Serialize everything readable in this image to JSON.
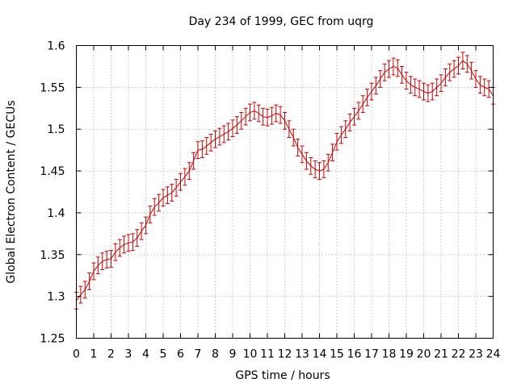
{
  "chart_data": {
    "type": "line",
    "title": "Day 234 of 1999, GEC from uqrg",
    "xlabel": "GPS time / hours",
    "ylabel": "Global Electron Content / GECUs",
    "xlim": [
      0,
      24
    ],
    "ylim": [
      1.25,
      1.6
    ],
    "x_ticks": [
      "0",
      "1",
      "2",
      "3",
      "4",
      "5",
      "6",
      "7",
      "8",
      "9",
      "10",
      "11",
      "12",
      "13",
      "14",
      "15",
      "16",
      "17",
      "18",
      "19",
      "20",
      "21",
      "22",
      "23",
      "24"
    ],
    "y_ticks": [
      "1.25",
      "1.3",
      "1.35",
      "1.4",
      "1.45",
      "1.5",
      "1.55",
      "1.6"
    ],
    "grid": true,
    "error": 0.01,
    "series": [
      {
        "name": "GEC",
        "color": "#cc0000",
        "x": [
          0,
          0.25,
          0.5,
          0.75,
          1,
          1.25,
          1.5,
          1.75,
          2,
          2.25,
          2.5,
          2.75,
          3,
          3.25,
          3.5,
          3.75,
          4,
          4.25,
          4.5,
          4.75,
          5,
          5.25,
          5.5,
          5.75,
          6,
          6.25,
          6.5,
          6.75,
          7,
          7.25,
          7.5,
          7.75,
          8,
          8.25,
          8.5,
          8.75,
          9,
          9.25,
          9.5,
          9.75,
          10,
          10.25,
          10.5,
          10.75,
          11,
          11.25,
          11.5,
          11.75,
          12,
          12.25,
          12.5,
          12.75,
          13,
          13.25,
          13.5,
          13.75,
          14,
          14.25,
          14.5,
          14.75,
          15,
          15.25,
          15.5,
          15.75,
          16,
          16.25,
          16.5,
          16.75,
          17,
          17.25,
          17.5,
          17.75,
          18,
          18.25,
          18.5,
          18.75,
          19,
          19.25,
          19.5,
          19.75,
          20,
          20.25,
          20.5,
          20.75,
          21,
          21.25,
          21.5,
          21.75,
          22,
          22.25,
          22.5,
          22.75,
          23,
          23.25,
          23.5,
          23.75,
          24
        ],
        "values": [
          1.295,
          1.302,
          1.308,
          1.318,
          1.33,
          1.337,
          1.342,
          1.344,
          1.345,
          1.353,
          1.358,
          1.362,
          1.364,
          1.365,
          1.37,
          1.378,
          1.385,
          1.398,
          1.407,
          1.412,
          1.418,
          1.421,
          1.424,
          1.43,
          1.437,
          1.443,
          1.45,
          1.462,
          1.475,
          1.476,
          1.48,
          1.484,
          1.488,
          1.491,
          1.494,
          1.497,
          1.501,
          1.505,
          1.51,
          1.515,
          1.52,
          1.522,
          1.519,
          1.515,
          1.514,
          1.516,
          1.519,
          1.517,
          1.51,
          1.5,
          1.49,
          1.478,
          1.47,
          1.462,
          1.456,
          1.452,
          1.45,
          1.452,
          1.46,
          1.472,
          1.485,
          1.493,
          1.5,
          1.508,
          1.515,
          1.522,
          1.53,
          1.538,
          1.545,
          1.552,
          1.56,
          1.568,
          1.572,
          1.575,
          1.573,
          1.565,
          1.558,
          1.553,
          1.55,
          1.548,
          1.545,
          1.543,
          1.545,
          1.55,
          1.555,
          1.562,
          1.568,
          1.572,
          1.576,
          1.582,
          1.578,
          1.57,
          1.56,
          1.553,
          1.55,
          1.548,
          1.54
        ]
      }
    ]
  }
}
